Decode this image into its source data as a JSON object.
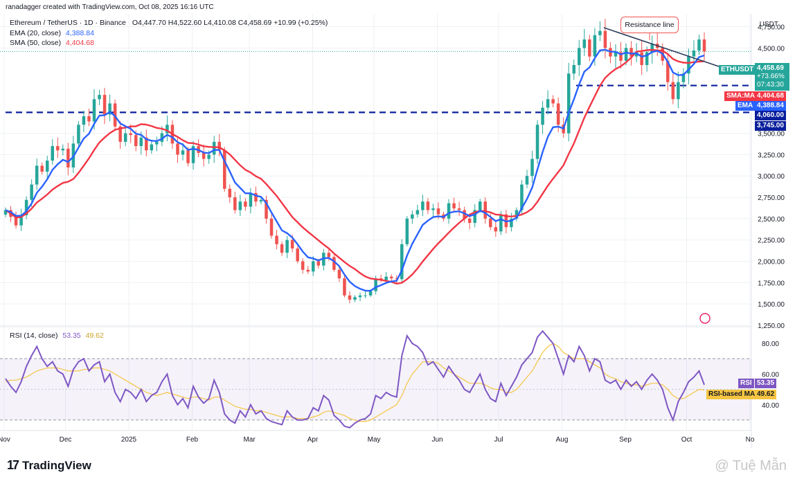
{
  "header": {
    "attribution": "ranadagger created with TradingView.com, Oct 08, 2025 16:16 UTC",
    "symbol": "Ethereum / TetherUS · 1D · Binance",
    "ohlc": "O4,447.70  H4,522.60  L4,410.08  C4,458.69  +10.99 (+0.25%)",
    "currency": "USDT"
  },
  "legend": {
    "ema_name": "EMA (20, close)",
    "ema_value": "4,388.84",
    "sma_name": "SMA (50, close)",
    "sma_value": "4,404.68",
    "rsi_name": "RSI (14, close)",
    "rsi_value": "53.35",
    "rsi_ma_value": "49.62"
  },
  "annotations": {
    "resistance": "Resistance line"
  },
  "tags": {
    "symbol": "ETHUSDT",
    "price": "4,458.69",
    "change": "+73.66%",
    "countdown": "07:43:30",
    "sma": "SMA:MA",
    "sma_value": "4,404.68",
    "ema": "EMA",
    "ema_value": "4,388.84",
    "level1": "4,060.00",
    "level2": "3,745.00",
    "rsi": "RSI",
    "rsi_value": "53.35",
    "rsi_ma": "RSI-based MA",
    "rsi_ma_value": "49.62"
  },
  "footer": {
    "logo": "TradingView",
    "watermark": "@ Tuệ Mẫn"
  },
  "colors": {
    "up": "#26a69a",
    "down": "#ef5350",
    "ema": "#2962ff",
    "sma": "#f23645",
    "rsi": "#7e57c2",
    "rsi_ma": "#f5c542",
    "level": "#0a1f9c",
    "grid": "#eef0f3"
  },
  "chart_data": [
    {
      "type": "candlestick",
      "title": "Ethereum / TetherUS · 1D · Binance",
      "y_axis_ticks": [
        "4,750.00",
        "4,500.00",
        "3,500.00",
        "3,250.00",
        "3,000.00",
        "2,750.00",
        "2,500.00",
        "2,250.00",
        "2,000.00",
        "1,750.00",
        "1,500.00",
        "1,250.00"
      ],
      "x_axis_ticks": [
        "Nov",
        "Dec",
        "2025",
        "Feb",
        "Mar",
        "Apr",
        "May",
        "Jun",
        "Jul",
        "Aug",
        "Sep",
        "Oct",
        "No"
      ],
      "ylim": [
        1250,
        4900
      ],
      "grid": true,
      "series": [
        {
          "name": "ETHUSDT",
          "closes": [
            2600,
            2520,
            2420,
            2540,
            2720,
            2900,
            3120,
            3050,
            3180,
            3350,
            3300,
            3320,
            3100,
            3380,
            3600,
            3700,
            3640,
            3900,
            3950,
            3720,
            3850,
            3580,
            3400,
            3500,
            3480,
            3350,
            3450,
            3300,
            3370,
            3400,
            3500,
            3600,
            3380,
            3250,
            3300,
            3150,
            3350,
            3270,
            3200,
            3250,
            3400,
            3300,
            2850,
            2750,
            2600,
            2700,
            2640,
            2800,
            2700,
            2720,
            2500,
            2300,
            2200,
            2100,
            2250,
            2150,
            2000,
            1900,
            1880,
            2000,
            1950,
            2100,
            2050,
            1900,
            1800,
            1600,
            1550,
            1580,
            1600,
            1600,
            1650,
            1800,
            1780,
            1820,
            1800,
            1790,
            2200,
            2500,
            2550,
            2600,
            2700,
            2600,
            2620,
            2550,
            2500,
            2680,
            2620,
            2600,
            2500,
            2450,
            2600,
            2700,
            2500,
            2400,
            2350,
            2550,
            2400,
            2500,
            2600,
            2900,
            3000,
            3200,
            3600,
            3800,
            3900,
            3850,
            3600,
            3500,
            4200,
            4300,
            4500,
            4600,
            4400,
            4650,
            4700,
            4500,
            4400,
            4450,
            4350,
            4500,
            4400,
            4450,
            4300,
            4450,
            4550,
            4500,
            4350,
            4100,
            3900,
            4100,
            4200,
            4400,
            4470,
            4600,
            4459
          ]
        },
        {
          "name": "EMA (20, close)",
          "last": 4388.84
        },
        {
          "name": "SMA (50, close)",
          "last": 4404.68
        }
      ],
      "horizontal_levels": [
        4060,
        3745
      ],
      "annotations": [
        "Resistance line"
      ]
    },
    {
      "type": "line",
      "title": "RSI (14, close)",
      "y_axis_ticks": [
        "80.00",
        "60.00",
        "40.00"
      ],
      "ylim": [
        25,
        90
      ],
      "bands": [
        30,
        70
      ],
      "series": [
        {
          "name": "RSI",
          "values": [
            57,
            52,
            48,
            55,
            65,
            72,
            78,
            70,
            65,
            68,
            62,
            60,
            52,
            63,
            68,
            70,
            62,
            66,
            68,
            55,
            60,
            48,
            42,
            50,
            48,
            44,
            50,
            42,
            46,
            48,
            55,
            60,
            46,
            40,
            44,
            38,
            52,
            45,
            41,
            44,
            56,
            48,
            34,
            30,
            28,
            36,
            32,
            40,
            34,
            36,
            31,
            29,
            28,
            27,
            36,
            32,
            30,
            30,
            31,
            38,
            36,
            46,
            43,
            33,
            30,
            26,
            25,
            28,
            30,
            31,
            34,
            46,
            44,
            48,
            46,
            45,
            72,
            85,
            80,
            78,
            74,
            66,
            68,
            63,
            58,
            65,
            60,
            56,
            50,
            48,
            54,
            60,
            50,
            44,
            42,
            54,
            46,
            52,
            58,
            66,
            70,
            74,
            84,
            88,
            84,
            80,
            70,
            60,
            72,
            68,
            78,
            72,
            62,
            70,
            68,
            56,
            54,
            56,
            50,
            56,
            52,
            55,
            50,
            56,
            60,
            56,
            50,
            38,
            30,
            42,
            48,
            55,
            58,
            62,
            53
          ]
        },
        {
          "name": "RSI-based MA",
          "values": [
            55,
            56,
            56,
            57,
            58,
            60,
            62,
            63,
            64,
            64,
            64,
            63,
            62,
            62,
            62,
            63,
            63,
            64,
            64,
            63,
            62,
            60,
            58,
            56,
            54,
            52,
            50,
            48,
            47,
            46,
            47,
            48,
            47,
            46,
            45,
            44,
            45,
            45,
            44,
            43,
            45,
            45,
            43,
            41,
            39,
            38,
            37,
            37,
            36,
            36,
            35,
            34,
            33,
            32,
            32,
            32,
            31,
            31,
            31,
            32,
            33,
            35,
            36,
            35,
            34,
            33,
            31,
            30,
            29,
            29,
            30,
            32,
            34,
            36,
            38,
            40,
            46,
            54,
            60,
            64,
            68,
            68,
            68,
            67,
            64,
            62,
            60,
            58,
            56,
            54,
            54,
            54,
            53,
            51,
            50,
            50,
            48,
            48,
            50,
            54,
            58,
            62,
            68,
            74,
            78,
            80,
            78,
            74,
            72,
            70,
            70,
            70,
            68,
            66,
            64,
            60,
            58,
            57,
            55,
            54,
            53,
            53,
            52,
            53,
            54,
            54,
            53,
            50,
            46,
            44,
            44,
            46,
            48,
            50,
            49.62
          ]
        }
      ]
    }
  ]
}
